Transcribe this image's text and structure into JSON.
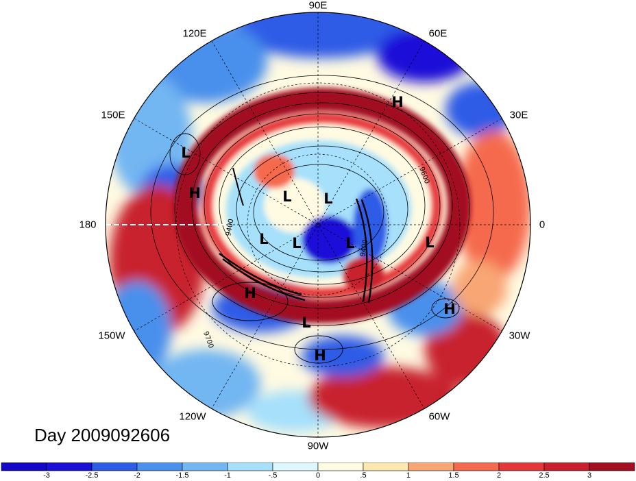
{
  "title": "Day 2009092606",
  "lon_labels": [
    {
      "id": "lon-90e",
      "text": "90E"
    },
    {
      "id": "lon-120e",
      "text": "120E"
    },
    {
      "id": "lon-60e",
      "text": "60E"
    },
    {
      "id": "lon-150e",
      "text": "150E"
    },
    {
      "id": "lon-30e",
      "text": "30E"
    },
    {
      "id": "lon-180",
      "text": "180"
    },
    {
      "id": "lon-0",
      "text": "0"
    },
    {
      "id": "lon-150w",
      "text": "150W"
    },
    {
      "id": "lon-30w",
      "text": "30W"
    },
    {
      "id": "lon-120w",
      "text": "120W"
    },
    {
      "id": "lon-60w",
      "text": "60W"
    },
    {
      "id": "lon-90w",
      "text": "90W"
    }
  ],
  "pressure_centers": [
    "H",
    "L",
    "H",
    "L",
    "L",
    "L",
    "L",
    "L",
    "L",
    "H",
    "L",
    "H",
    "H"
  ],
  "contour_labels": [
    "9400",
    "9400",
    "9700",
    "9600"
  ],
  "colorbar": {
    "labels": [
      "-3",
      "-2.5",
      "-2",
      "-1.5",
      "-1",
      "-.5",
      "0",
      ".5",
      "1",
      "1.5",
      "2",
      "2.5",
      "3"
    ],
    "colors": [
      "#1a10d8",
      "#2e5ce6",
      "#4a90ec",
      "#72b6f2",
      "#a6e0fb",
      "#dcf8fd",
      "#fffae2",
      "#fde9b0",
      "#f8a673",
      "#f56a4e",
      "#e5383a",
      "#c8202d",
      "#a30f20"
    ]
  },
  "colors": {
    "strong_negative": "#1a10d8",
    "strong_positive": "#a30f20"
  }
}
